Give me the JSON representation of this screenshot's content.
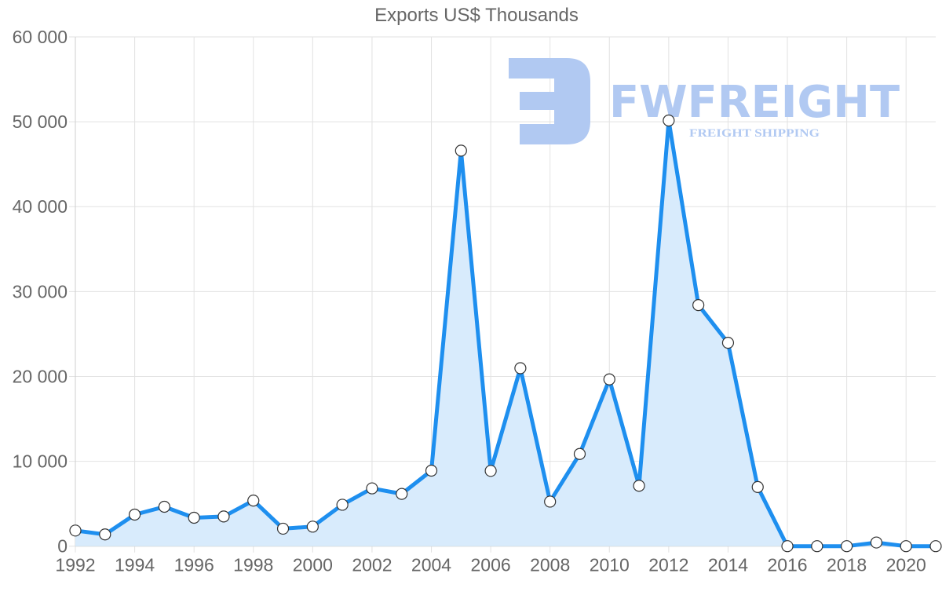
{
  "chart_data": {
    "type": "line",
    "title": "Exports US$ Thousands",
    "xlabel": "",
    "ylabel": "",
    "ylim": [
      0,
      60000
    ],
    "yticks": [
      "0",
      "10 000",
      "20 000",
      "30 000",
      "40 000",
      "50 000",
      "60 000"
    ],
    "xticks": [
      "1992",
      "1994",
      "1996",
      "1998",
      "2000",
      "2002",
      "2004",
      "2006",
      "2008",
      "2010",
      "2012",
      "2014",
      "2016",
      "2018",
      "2020"
    ],
    "grid": true,
    "legend": null,
    "fill": true,
    "x": [
      1992,
      1993,
      1994,
      1995,
      1996,
      1997,
      1998,
      1999,
      2000,
      2001,
      2002,
      2003,
      2004,
      2005,
      2006,
      2007,
      2008,
      2009,
      2010,
      2011,
      2012,
      2013,
      2014,
      2015,
      2016,
      2017,
      2018,
      2019,
      2020,
      2021
    ],
    "series": [
      {
        "name": "Exports US$ Thousands",
        "values": [
          1840,
          1380,
          3720,
          4640,
          3350,
          3500,
          5370,
          2060,
          2300,
          4880,
          6810,
          6160,
          8900,
          46600,
          8870,
          20970,
          5250,
          10860,
          19650,
          7120,
          50150,
          28400,
          23960,
          6970,
          0,
          0,
          0,
          430,
          0,
          0
        ]
      }
    ]
  },
  "colors": {
    "line": "#1e8fef",
    "fill": "#d8ebfc",
    "grid": "#e2e2e2",
    "text": "#666666",
    "watermark": "#b1c9f2"
  },
  "watermark": {
    "brand": "FWFREIGHT",
    "tagline": "FREIGHT SHIPPING"
  }
}
